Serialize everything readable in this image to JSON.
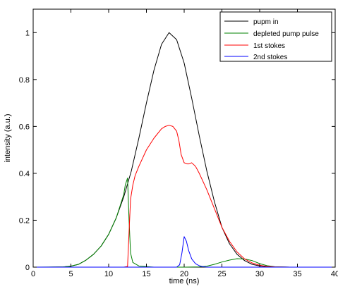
{
  "chart_data": {
    "type": "line",
    "xlabel": "time (ns)",
    "ylabel": "intensity (a.u.)",
    "xlim": [
      0,
      40
    ],
    "ylim": [
      0,
      1.1
    ],
    "xticks": [
      "0",
      "5",
      "10",
      "15",
      "20",
      "25",
      "30",
      "35",
      "40"
    ],
    "yticks": [
      "0",
      "0.2",
      "0.4",
      "0.6",
      "0.8",
      "1"
    ],
    "xtick_values": [
      0,
      5,
      10,
      15,
      20,
      25,
      30,
      35,
      40
    ],
    "ytick_values": [
      0,
      0.2,
      0.4,
      0.6,
      0.8,
      1.0
    ],
    "grid": false,
    "legend_position": "top-right",
    "series": [
      {
        "name": "pupm in",
        "color": "#000000",
        "x": [
          0,
          2,
          4,
          5,
          6,
          7,
          8,
          9,
          10,
          11,
          12,
          13,
          14,
          15,
          16,
          17,
          18,
          19,
          20,
          21,
          22,
          23,
          24,
          25,
          26,
          27,
          28,
          29,
          30,
          31,
          32,
          34,
          36,
          40
        ],
        "y": [
          0,
          0,
          0.001,
          0.004,
          0.012,
          0.03,
          0.055,
          0.09,
          0.14,
          0.21,
          0.3,
          0.41,
          0.55,
          0.7,
          0.84,
          0.95,
          1.0,
          0.97,
          0.87,
          0.72,
          0.56,
          0.41,
          0.28,
          0.17,
          0.1,
          0.055,
          0.028,
          0.012,
          0.005,
          0.002,
          0.001,
          0,
          0,
          0
        ]
      },
      {
        "name": "depleted pump pulse",
        "color": "#008000",
        "x": [
          0,
          4,
          5,
          6,
          7,
          8,
          9,
          10,
          11,
          11.5,
          12,
          12.2,
          12.5,
          12.7,
          12.9,
          13.2,
          14,
          16,
          18,
          20,
          22,
          23,
          24,
          25,
          26,
          27,
          28,
          29,
          30,
          31,
          32,
          34,
          40
        ],
        "y": [
          0,
          0.001,
          0.004,
          0.012,
          0.03,
          0.055,
          0.09,
          0.14,
          0.21,
          0.26,
          0.31,
          0.35,
          0.38,
          0.2,
          0.06,
          0.02,
          0.005,
          0,
          0,
          0,
          0.001,
          0.004,
          0.012,
          0.022,
          0.03,
          0.036,
          0.035,
          0.028,
          0.015,
          0.006,
          0.002,
          0,
          0
        ]
      },
      {
        "name": "1st stokes",
        "color": "#ff0000",
        "x": [
          0,
          12,
          12.5,
          12.7,
          12.9,
          13.2,
          13.5,
          14,
          15,
          16,
          17,
          17.5,
          18,
          18.5,
          19,
          19.3,
          19.6,
          20,
          20.5,
          21,
          21.5,
          22,
          23,
          24,
          25,
          26,
          27,
          28,
          29,
          30,
          31,
          32,
          34,
          40
        ],
        "y": [
          0,
          0,
          0.003,
          0.15,
          0.29,
          0.35,
          0.39,
          0.43,
          0.5,
          0.55,
          0.59,
          0.6,
          0.605,
          0.6,
          0.58,
          0.54,
          0.48,
          0.445,
          0.44,
          0.445,
          0.43,
          0.4,
          0.33,
          0.25,
          0.17,
          0.11,
          0.065,
          0.035,
          0.018,
          0.008,
          0.003,
          0.001,
          0,
          0
        ]
      },
      {
        "name": "2nd stokes",
        "color": "#0000ff",
        "x": [
          0,
          19,
          19.4,
          19.7,
          20,
          20.3,
          20.6,
          21,
          21.5,
          22,
          22.5,
          23,
          24,
          40
        ],
        "y": [
          0,
          0,
          0.01,
          0.06,
          0.13,
          0.11,
          0.07,
          0.035,
          0.015,
          0.006,
          0.002,
          0,
          0,
          0
        ]
      }
    ]
  }
}
